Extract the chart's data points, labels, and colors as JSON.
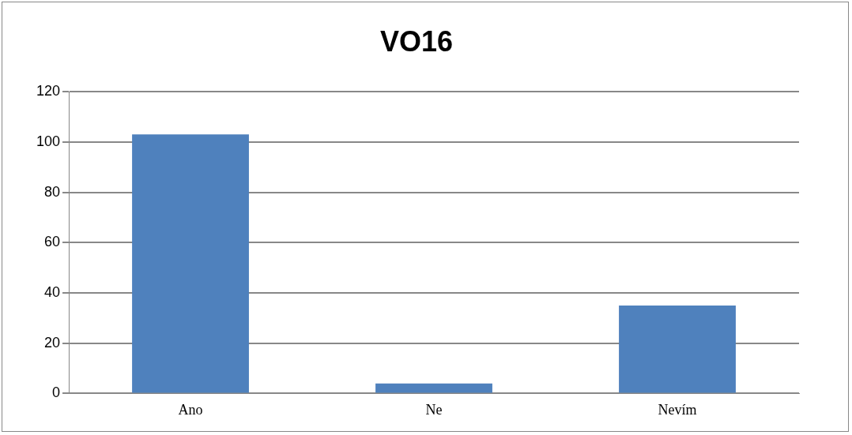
{
  "chart_data": {
    "type": "bar",
    "title": "VO16",
    "categories": [
      "Ano",
      "Ne",
      "Nevím"
    ],
    "values": [
      103,
      4,
      35
    ],
    "color": "#4f81bd",
    "ylim": [
      0,
      120
    ],
    "yticks": [
      0,
      20,
      40,
      60,
      80,
      100,
      120
    ],
    "grid": "y",
    "legend": false
  }
}
